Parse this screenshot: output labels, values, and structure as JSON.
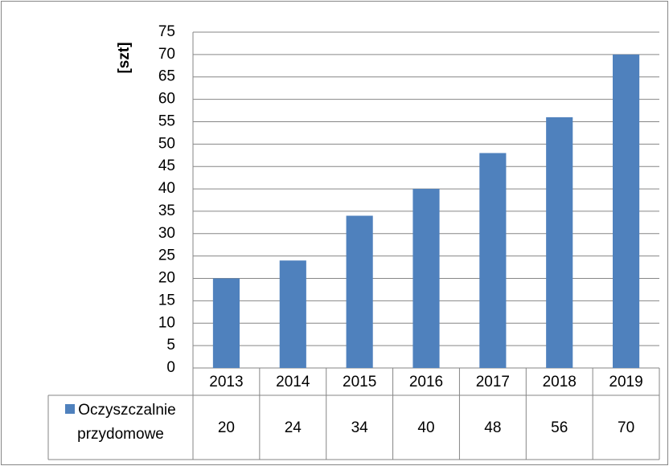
{
  "chart_data": {
    "type": "bar",
    "y_label": "[szt]",
    "categories": [
      "2013",
      "2014",
      "2015",
      "2016",
      "2017",
      "2018",
      "2019"
    ],
    "series": [
      {
        "name": "Oczyszczalnie przydomowe",
        "color": "#4f81bd",
        "values": [
          20,
          24,
          34,
          40,
          48,
          56,
          70
        ]
      }
    ],
    "ylim": [
      0,
      75
    ],
    "yticks": [
      0,
      5,
      10,
      15,
      20,
      25,
      30,
      35,
      40,
      45,
      50,
      55,
      60,
      65,
      70,
      75
    ],
    "grid": true,
    "data_table": true
  }
}
